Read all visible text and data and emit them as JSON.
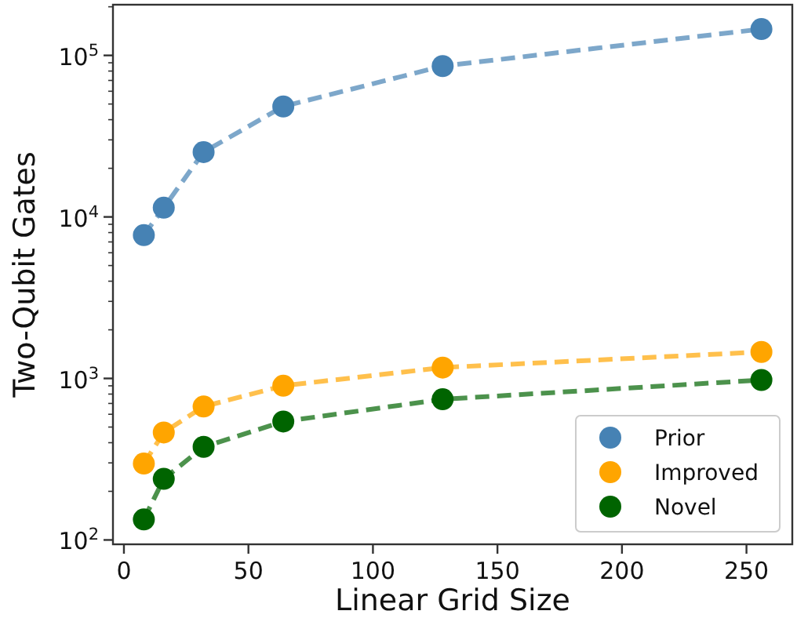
{
  "chart_data": {
    "type": "line",
    "xlabel": "Linear Grid Size",
    "ylabel": "Two-Qubit Gates",
    "x": [
      8,
      16,
      32,
      64,
      128,
      256
    ],
    "series": [
      {
        "name": "Prior",
        "color": "#4682b4",
        "values": [
          7710,
          11400,
          25200,
          48300,
          85900,
          145500
        ]
      },
      {
        "name": "Improved",
        "color": "#ffa500",
        "values": [
          297,
          463,
          670,
          901,
          1168,
          1459
        ]
      },
      {
        "name": "Novel",
        "color": "#006400",
        "values": [
          134,
          239,
          377,
          541,
          743,
          978
        ]
      }
    ],
    "xlim": [
      -4.4,
      268.4
    ],
    "xticks": [
      0,
      50,
      100,
      150,
      200,
      250
    ],
    "ylim": [
      94,
      206000
    ],
    "log": "y",
    "yticks": [
      {
        "value": 100,
        "label": "10$^{2}$"
      },
      {
        "value": 200,
        "label": null
      },
      {
        "value": 300,
        "label": null
      },
      {
        "value": 400,
        "label": null
      },
      {
        "value": 500,
        "label": null
      },
      {
        "value": 600,
        "label": null
      },
      {
        "value": 700,
        "label": null
      },
      {
        "value": 800,
        "label": null
      },
      {
        "value": 900,
        "label": null
      },
      {
        "value": 1000,
        "label": "10$^{3}$"
      },
      {
        "value": 2000,
        "label": null
      },
      {
        "value": 3000,
        "label": null
      },
      {
        "value": 4000,
        "label": null
      },
      {
        "value": 5000,
        "label": null
      },
      {
        "value": 6000,
        "label": null
      },
      {
        "value": 7000,
        "label": null
      },
      {
        "value": 8000,
        "label": null
      },
      {
        "value": 9000,
        "label": null
      },
      {
        "value": 10000,
        "label": "10$^{4}$"
      },
      {
        "value": 20000,
        "label": null
      },
      {
        "value": 30000,
        "label": null
      },
      {
        "value": 40000,
        "label": null
      },
      {
        "value": 50000,
        "label": null
      },
      {
        "value": 60000,
        "label": null
      },
      {
        "value": 70000,
        "label": null
      },
      {
        "value": 80000,
        "label": null
      },
      {
        "value": 90000,
        "label": null
      },
      {
        "value": 100000,
        "label": "10$^{5}$"
      },
      {
        "value": 200000,
        "label": null
      }
    ],
    "marker": "circle",
    "line_style": "dashed",
    "legend": "bottom right",
    "grid": false
  }
}
